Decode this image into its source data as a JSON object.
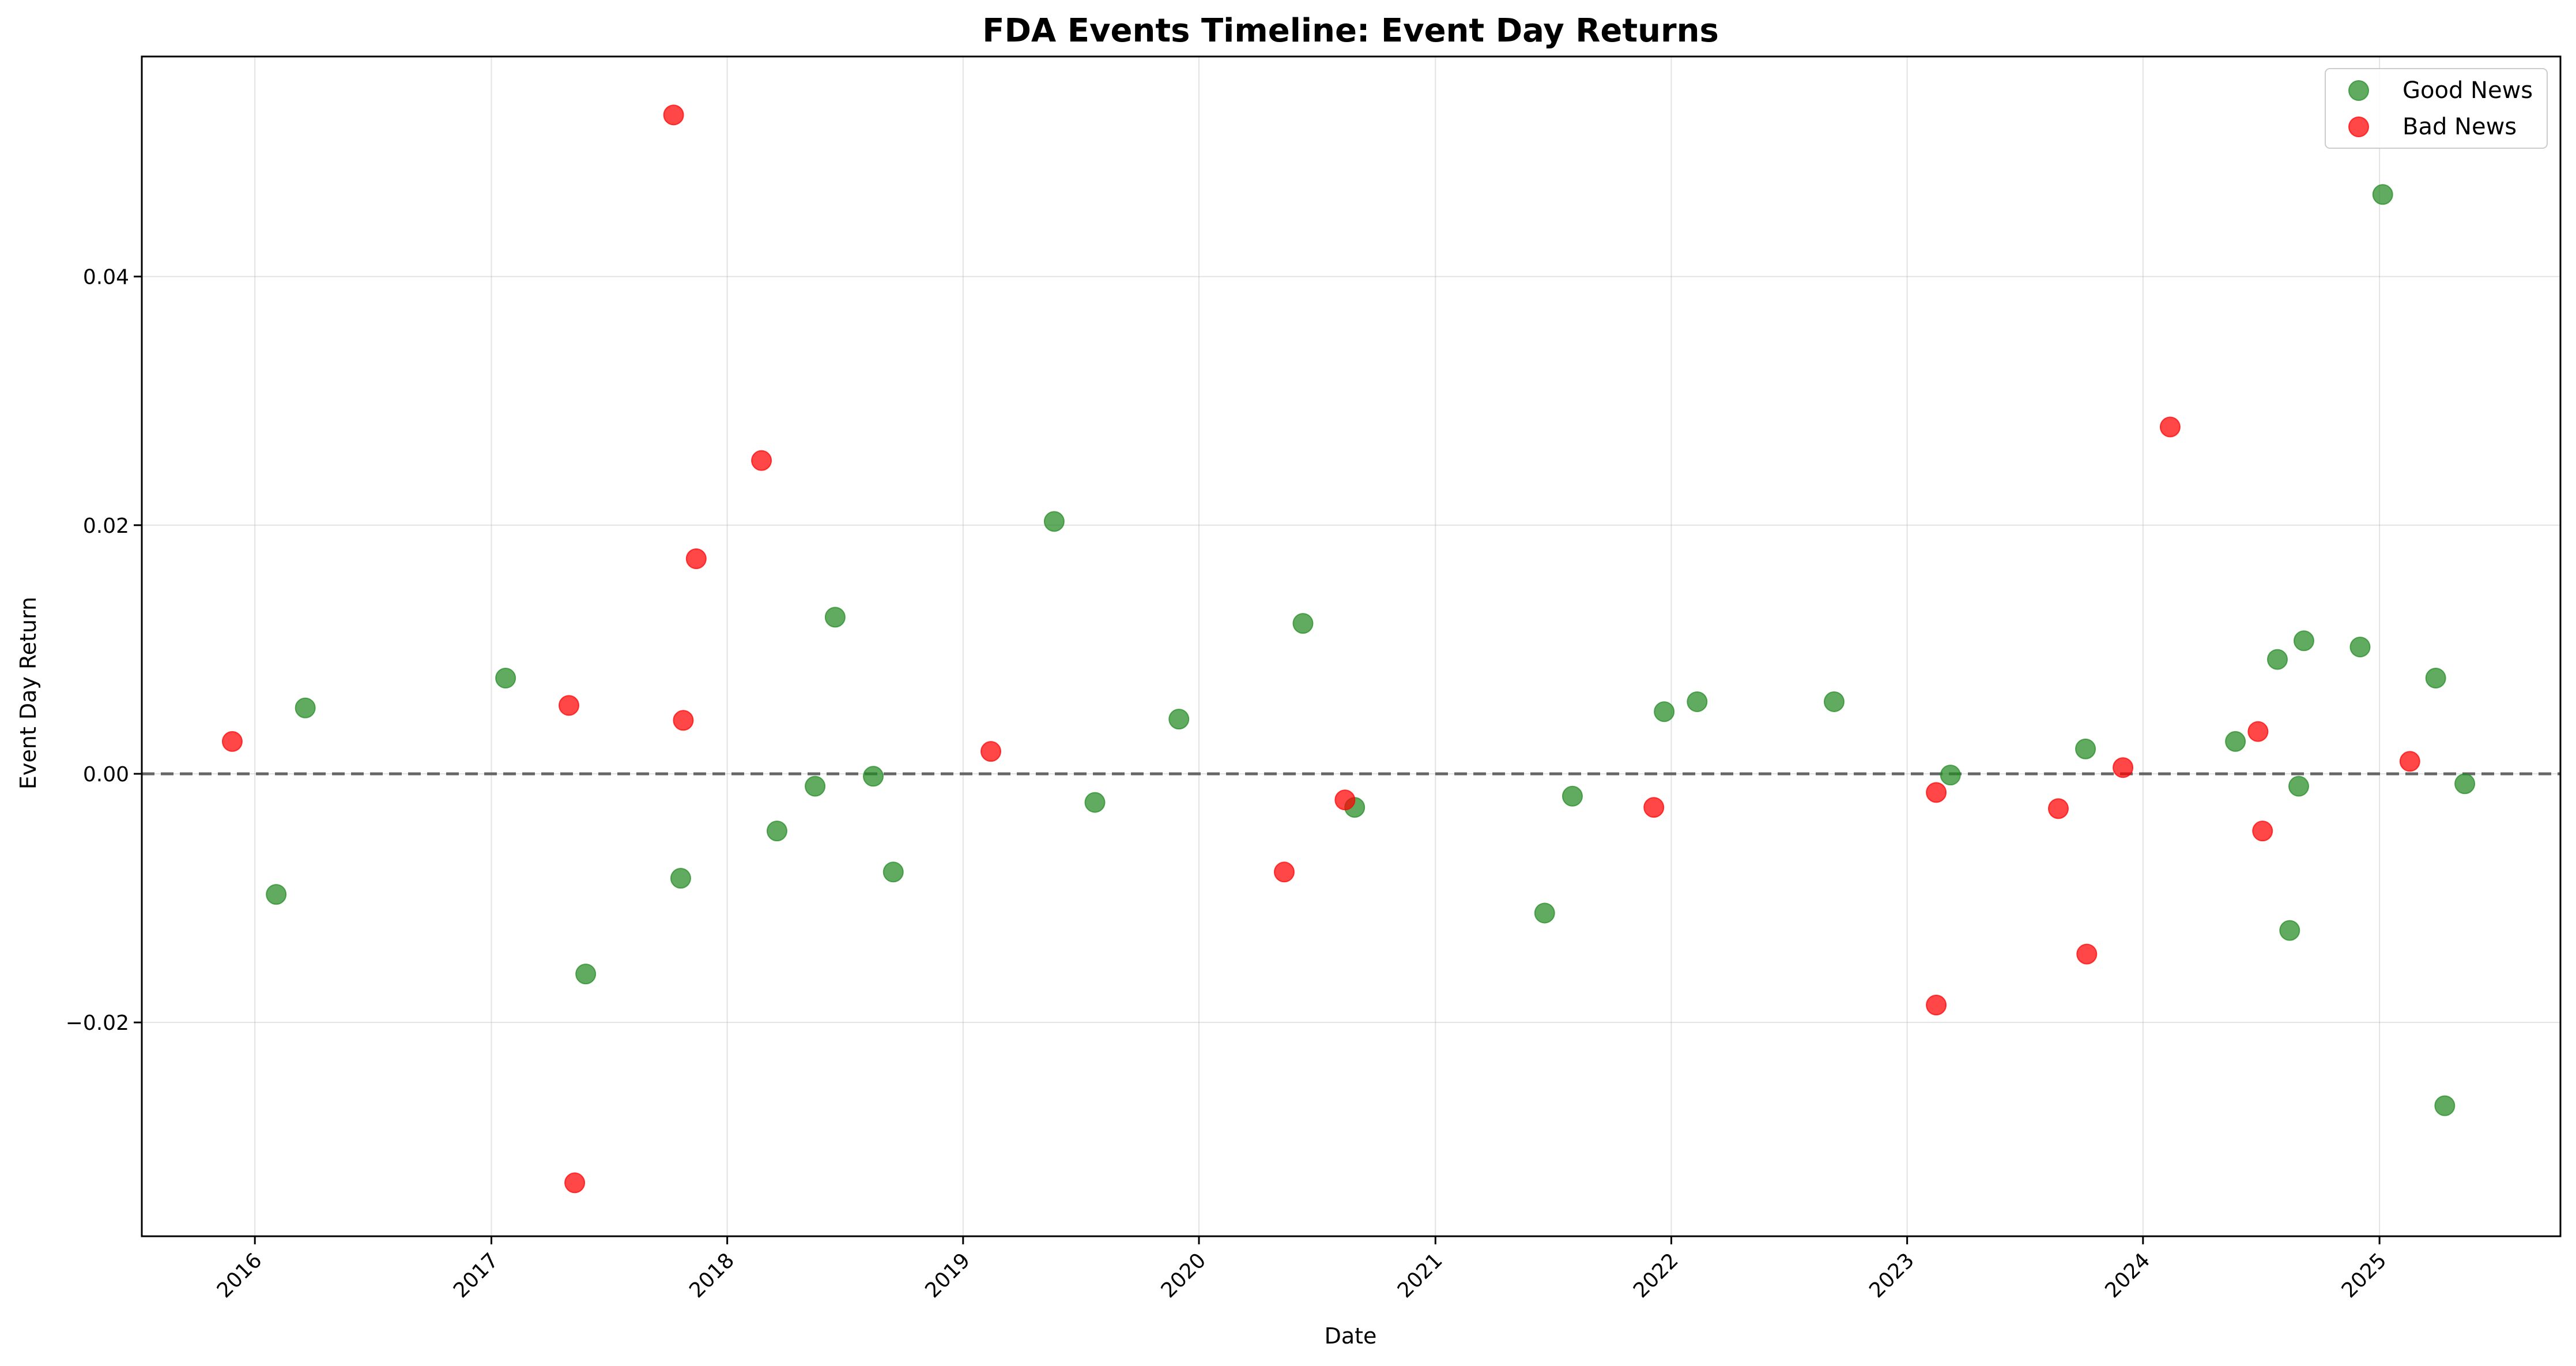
{
  "chart_data": {
    "type": "scatter",
    "title": "FDA Events Timeline: Event Day Returns",
    "xlabel": "Date",
    "ylabel": "Event Day Return",
    "x_ticks": [
      "2016",
      "2017",
      "2018",
      "2019",
      "2020",
      "2021",
      "2022",
      "2023",
      "2024",
      "2025"
    ],
    "y_ticks": [
      "−0.02",
      "0.00",
      "0.02",
      "0.04"
    ],
    "xlim": [
      "2015-07-10",
      "2025-10-08"
    ],
    "ylim": [
      -0.0372,
      0.0577
    ],
    "grid": true,
    "legend_position": "top-right",
    "reference_line": {
      "y": 0.0,
      "style": "dashed",
      "color": "#666666"
    },
    "series": [
      {
        "name": "Good News",
        "color": "#228B22",
        "points": [
          {
            "x": "2016-02-03",
            "y": -0.0097
          },
          {
            "x": "2016-03-19",
            "y": 0.0053
          },
          {
            "x": "2017-01-23",
            "y": 0.0077
          },
          {
            "x": "2017-05-27",
            "y": -0.0161
          },
          {
            "x": "2017-10-21",
            "y": -0.0084
          },
          {
            "x": "2018-03-19",
            "y": -0.0046
          },
          {
            "x": "2018-05-17",
            "y": -0.001
          },
          {
            "x": "2018-06-17",
            "y": 0.0126
          },
          {
            "x": "2018-08-15",
            "y": -0.0002
          },
          {
            "x": "2018-09-15",
            "y": -0.0079
          },
          {
            "x": "2019-05-22",
            "y": 0.0203
          },
          {
            "x": "2019-07-24",
            "y": -0.0023
          },
          {
            "x": "2019-12-01",
            "y": 0.0044
          },
          {
            "x": "2020-06-10",
            "y": 0.0121
          },
          {
            "x": "2020-08-29",
            "y": -0.0027
          },
          {
            "x": "2021-06-19",
            "y": -0.0112
          },
          {
            "x": "2021-08-01",
            "y": -0.0018
          },
          {
            "x": "2021-12-21",
            "y": 0.005
          },
          {
            "x": "2022-02-10",
            "y": 0.0058
          },
          {
            "x": "2022-09-10",
            "y": 0.0058
          },
          {
            "x": "2023-03-09",
            "y": -0.0001
          },
          {
            "x": "2023-10-04",
            "y": 0.002
          },
          {
            "x": "2024-05-23",
            "y": 0.0026
          },
          {
            "x": "2024-07-27",
            "y": 0.0092
          },
          {
            "x": "2024-08-15",
            "y": -0.0126
          },
          {
            "x": "2024-08-29",
            "y": -0.001
          },
          {
            "x": "2024-09-06",
            "y": 0.0107
          },
          {
            "x": "2024-12-02",
            "y": 0.0102
          },
          {
            "x": "2025-01-06",
            "y": 0.0466
          },
          {
            "x": "2025-03-29",
            "y": 0.0077
          },
          {
            "x": "2025-04-12",
            "y": -0.0267
          },
          {
            "x": "2025-05-13",
            "y": -0.0008
          }
        ]
      },
      {
        "name": "Bad News",
        "color": "#FF0000",
        "points": [
          {
            "x": "2015-11-27",
            "y": 0.0026
          },
          {
            "x": "2017-05-01",
            "y": 0.0055
          },
          {
            "x": "2017-05-10",
            "y": -0.0329
          },
          {
            "x": "2017-10-10",
            "y": 0.053
          },
          {
            "x": "2017-10-25",
            "y": 0.0043
          },
          {
            "x": "2017-11-14",
            "y": 0.0173
          },
          {
            "x": "2018-02-23",
            "y": 0.0252
          },
          {
            "x": "2019-02-13",
            "y": 0.0018
          },
          {
            "x": "2020-05-12",
            "y": -0.0079
          },
          {
            "x": "2020-08-14",
            "y": -0.0021
          },
          {
            "x": "2021-12-05",
            "y": -0.0027
          },
          {
            "x": "2023-02-15",
            "y": -0.0015
          },
          {
            "x": "2023-02-15",
            "y": -0.0186
          },
          {
            "x": "2023-08-23",
            "y": -0.0028
          },
          {
            "x": "2023-10-06",
            "y": -0.0145
          },
          {
            "x": "2023-12-01",
            "y": 0.0005
          },
          {
            "x": "2024-02-12",
            "y": 0.0279
          },
          {
            "x": "2024-06-27",
            "y": 0.0034
          },
          {
            "x": "2024-07-04",
            "y": -0.0046
          },
          {
            "x": "2025-02-17",
            "y": 0.001
          }
        ]
      }
    ]
  }
}
